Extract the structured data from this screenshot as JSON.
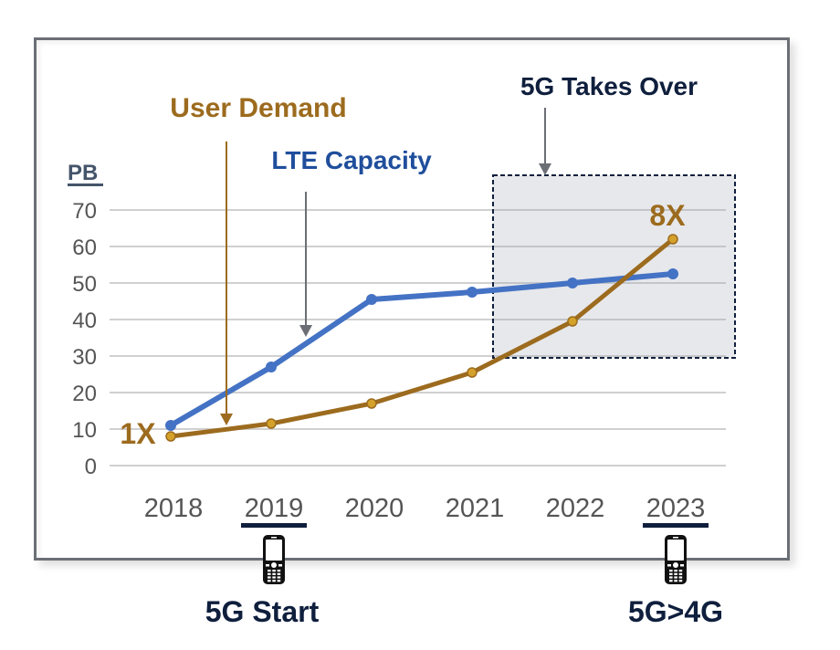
{
  "chart_data": {
    "type": "line",
    "title": "",
    "xlabel": "",
    "ylabel": "PB",
    "ylim": [
      0,
      70
    ],
    "yticks": [
      0,
      10,
      20,
      30,
      40,
      50,
      60,
      70
    ],
    "grid": true,
    "categories": [
      "2018",
      "2019",
      "2020",
      "2021",
      "2022",
      "2023"
    ],
    "series": [
      {
        "name": "LTE Capacity",
        "color": "#4472c4",
        "values": [
          11,
          27,
          45.5,
          47.5,
          50,
          52.5
        ]
      },
      {
        "name": "User Demand",
        "color": "#9c6b1e",
        "marker_fill": "#d4a22a",
        "values": [
          8,
          11.5,
          17,
          25.5,
          39.5,
          62
        ]
      }
    ],
    "annotations": [
      {
        "id": "user-demand",
        "text": "User Demand",
        "color": "#9c6b1e",
        "points_to": {
          "x": "2018-2019",
          "y": 10
        }
      },
      {
        "id": "lte-capacity",
        "text": "LTE Capacity",
        "color": "#1f4e9c",
        "points_to": {
          "x": "2019-2020",
          "y": 35
        }
      },
      {
        "id": "5g-takes-over",
        "text": "5G Takes Over",
        "color": "#0f1f3d",
        "highlight_region": {
          "x_from": "2021",
          "x_to": "2023",
          "y_from": 30,
          "y_to": 80
        }
      },
      {
        "id": "start-multiplier",
        "text": "1X",
        "color": "#9c6b1e",
        "at": {
          "x": "2018",
          "y": 8
        }
      },
      {
        "id": "end-multiplier",
        "text": "8X",
        "color": "#9c6b1e",
        "at": {
          "x": "2023",
          "y": 62
        }
      }
    ],
    "milestones": [
      {
        "year": "2019",
        "label": "5G Start",
        "icon": "mobile-phone-icon"
      },
      {
        "year": "2023",
        "label": "5G>4G",
        "icon": "mobile-phone-icon"
      }
    ]
  },
  "colors": {
    "frame": "#6b6f75",
    "grid": "#d0d0d0",
    "tick_text": "#555555",
    "highlight_fill": "#e3e4e8",
    "highlight_border": "#0f1f3d",
    "milestone_underline": "#0f1f3d",
    "arrow_gray": "#6b6f75"
  }
}
